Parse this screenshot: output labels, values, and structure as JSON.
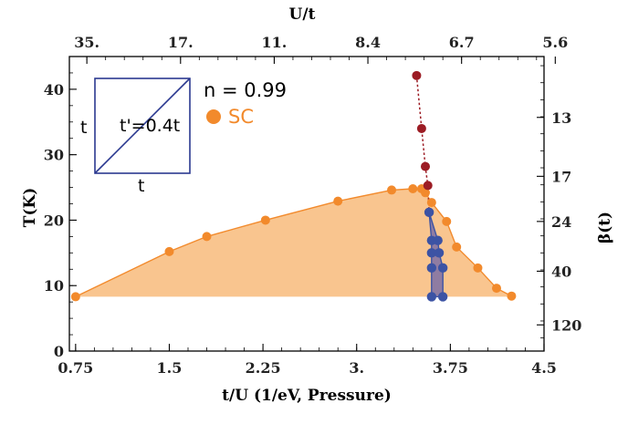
{
  "chart_data": {
    "type": "scatter",
    "x_bottom": {
      "label": "t/U (1/eV, Pressure)",
      "range": [
        0.7,
        4.5
      ],
      "ticks": [
        "0.75",
        "1.5",
        "2.25",
        "3.",
        "3.75",
        "4.5"
      ]
    },
    "x_top": {
      "label": "U/t",
      "ticks": [
        "35.",
        "17.",
        "11.",
        "8.4",
        "6.7",
        "5.6"
      ]
    },
    "y_left": {
      "label": "T(K)",
      "range": [
        0,
        45
      ],
      "ticks": [
        "0",
        "10",
        "20",
        "30",
        "40"
      ]
    },
    "y_right": {
      "label": "β(t)",
      "ticks": [
        "13",
        "17",
        "24",
        "40",
        "120"
      ]
    },
    "annotations": {
      "doping": "n = 0.99",
      "inset_hopping": "t'=0.4t",
      "inset_left": "t",
      "inset_bottom": "t"
    },
    "legend": [
      {
        "name": "SC",
        "color": "#f28a2c",
        "position": "top-left"
      }
    ],
    "series": [
      {
        "name": "SC",
        "color": "#f28a2c",
        "fill": "#f9c58f",
        "points": [
          [
            0.75,
            8.3
          ],
          [
            1.5,
            15.2
          ],
          [
            1.8,
            17.5
          ],
          [
            2.27,
            20.0
          ],
          [
            2.85,
            22.9
          ],
          [
            3.28,
            24.6
          ],
          [
            3.45,
            24.8
          ],
          [
            3.52,
            24.8
          ],
          [
            3.55,
            24.2
          ],
          [
            3.6,
            22.7
          ],
          [
            3.72,
            19.8
          ],
          [
            3.8,
            15.9
          ],
          [
            3.97,
            12.7
          ],
          [
            4.12,
            9.6
          ],
          [
            4.24,
            8.4
          ]
        ]
      },
      {
        "name": "blue-region",
        "color": "#3c53a4",
        "fill": "#7d6fa6",
        "points": [
          [
            3.58,
            21.2
          ],
          [
            3.6,
            16.9
          ],
          [
            3.6,
            15.0
          ],
          [
            3.6,
            12.7
          ],
          [
            3.6,
            8.3
          ],
          [
            3.69,
            8.3
          ],
          [
            3.69,
            12.7
          ],
          [
            3.66,
            15.0
          ],
          [
            3.65,
            16.9
          ]
        ]
      },
      {
        "name": "dark-red",
        "color": "#9c1c24",
        "points": [
          [
            3.48,
            42.1
          ],
          [
            3.52,
            34.0
          ],
          [
            3.55,
            28.2
          ],
          [
            3.57,
            25.3
          ],
          [
            3.58,
            21.2
          ]
        ]
      }
    ]
  }
}
